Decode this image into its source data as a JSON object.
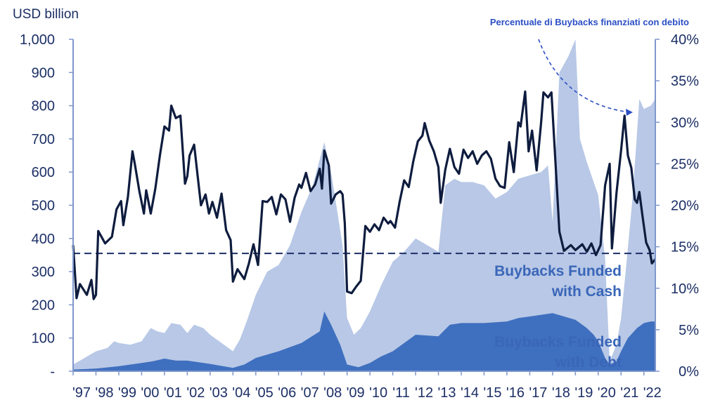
{
  "chart_data": {
    "type": "area",
    "title": "",
    "left_axis_title": "USD billion",
    "xlabel": "",
    "right_axis_label": "Percentuale di Buybacks finanziati con debito",
    "y_left": {
      "range": [
        0,
        1000
      ],
      "ticks": [
        "-",
        "100",
        "200",
        "300",
        "400",
        "500",
        "600",
        "700",
        "800",
        "900",
        "1,000"
      ]
    },
    "y_right": {
      "range": [
        0,
        40
      ],
      "ticks": [
        "0%",
        "5%",
        "10%",
        "15%",
        "20%",
        "25%",
        "30%",
        "35%",
        "40%"
      ]
    },
    "x_range": [
      1997.0,
      2022.5
    ],
    "x_ticks": [
      "'97",
      "'98",
      "'99",
      "'00",
      "'01",
      "'02",
      "'03",
      "'04",
      "'05",
      "'06",
      "'07",
      "'08",
      "'09",
      "'10",
      "'11",
      "'12",
      "'13",
      "'14",
      "'15",
      "'16",
      "'17",
      "'18",
      "'19",
      "'20",
      "'21",
      "'22"
    ],
    "reference_line": {
      "axis": "right",
      "value": 14.2,
      "style": "dashed"
    },
    "annotations": [
      "Buybacks Funded with Cash",
      "Buybacks Funded with Debt"
    ],
    "colors": {
      "cash": "#b8c8e6",
      "debt": "#3f6fbf",
      "line": "#0e1c3e",
      "text": "#1c2f66",
      "label": "#2b4ec4"
    },
    "series": [
      {
        "name": "Buybacks Funded with Cash",
        "axis": "left",
        "kind": "area",
        "points": [
          [
            1997.0,
            20
          ],
          [
            1997.5,
            40
          ],
          [
            1998.0,
            60
          ],
          [
            1998.5,
            70
          ],
          [
            1998.8,
            90
          ],
          [
            1999.0,
            85
          ],
          [
            1999.5,
            80
          ],
          [
            2000.0,
            90
          ],
          [
            2000.4,
            130
          ],
          [
            2000.7,
            120
          ],
          [
            2001.0,
            115
          ],
          [
            2001.3,
            145
          ],
          [
            2001.7,
            140
          ],
          [
            2002.0,
            115
          ],
          [
            2002.3,
            140
          ],
          [
            2002.7,
            130
          ],
          [
            2003.0,
            110
          ],
          [
            2003.3,
            95
          ],
          [
            2003.7,
            75
          ],
          [
            2004.0,
            60
          ],
          [
            2004.3,
            95
          ],
          [
            2004.6,
            150
          ],
          [
            2005.0,
            230
          ],
          [
            2005.5,
            300
          ],
          [
            2006.0,
            320
          ],
          [
            2006.5,
            380
          ],
          [
            2007.0,
            480
          ],
          [
            2007.5,
            560
          ],
          [
            2008.0,
            690
          ],
          [
            2008.3,
            600
          ],
          [
            2008.8,
            380
          ],
          [
            2009.0,
            160
          ],
          [
            2009.3,
            110
          ],
          [
            2009.6,
            130
          ],
          [
            2010.0,
            180
          ],
          [
            2010.5,
            260
          ],
          [
            2011.0,
            330
          ],
          [
            2011.5,
            360
          ],
          [
            2012.0,
            400
          ],
          [
            2012.5,
            380
          ],
          [
            2013.0,
            360
          ],
          [
            2013.3,
            560
          ],
          [
            2013.7,
            580
          ],
          [
            2014.0,
            570
          ],
          [
            2014.5,
            570
          ],
          [
            2015.0,
            560
          ],
          [
            2015.5,
            520
          ],
          [
            2016.0,
            540
          ],
          [
            2016.5,
            580
          ],
          [
            2017.0,
            590
          ],
          [
            2017.5,
            600
          ],
          [
            2017.8,
            620
          ],
          [
            2018.0,
            450
          ],
          [
            2018.3,
            900
          ],
          [
            2018.7,
            950
          ],
          [
            2019.0,
            1000
          ],
          [
            2019.2,
            700
          ],
          [
            2019.5,
            630
          ],
          [
            2020.0,
            530
          ],
          [
            2020.3,
            340
          ],
          [
            2020.5,
            30
          ],
          [
            2020.8,
            80
          ],
          [
            2021.0,
            160
          ],
          [
            2021.2,
            300
          ],
          [
            2021.5,
            520
          ],
          [
            2021.8,
            820
          ],
          [
            2022.0,
            790
          ],
          [
            2022.3,
            800
          ],
          [
            2022.5,
            820
          ]
        ]
      },
      {
        "name": "Buybacks Funded with Debt",
        "axis": "left",
        "kind": "area",
        "points": [
          [
            1997.0,
            5
          ],
          [
            1998.0,
            8
          ],
          [
            1999.0,
            15
          ],
          [
            2000.0,
            25
          ],
          [
            2000.5,
            30
          ],
          [
            2001.0,
            38
          ],
          [
            2001.5,
            32
          ],
          [
            2002.0,
            32
          ],
          [
            2003.0,
            22
          ],
          [
            2004.0,
            10
          ],
          [
            2004.5,
            20
          ],
          [
            2005.0,
            40
          ],
          [
            2006.0,
            60
          ],
          [
            2007.0,
            85
          ],
          [
            2007.8,
            120
          ],
          [
            2008.0,
            180
          ],
          [
            2008.3,
            140
          ],
          [
            2008.7,
            80
          ],
          [
            2009.0,
            20
          ],
          [
            2009.5,
            12
          ],
          [
            2010.0,
            25
          ],
          [
            2010.5,
            45
          ],
          [
            2011.0,
            60
          ],
          [
            2012.0,
            110
          ],
          [
            2013.0,
            105
          ],
          [
            2013.5,
            140
          ],
          [
            2014.0,
            145
          ],
          [
            2015.0,
            145
          ],
          [
            2016.0,
            150
          ],
          [
            2016.5,
            160
          ],
          [
            2017.0,
            165
          ],
          [
            2017.5,
            170
          ],
          [
            2018.0,
            175
          ],
          [
            2018.5,
            165
          ],
          [
            2019.0,
            155
          ],
          [
            2019.5,
            130
          ],
          [
            2019.8,
            110
          ],
          [
            2020.0,
            90
          ],
          [
            2020.3,
            40
          ],
          [
            2020.5,
            20
          ],
          [
            2020.8,
            30
          ],
          [
            2021.0,
            60
          ],
          [
            2021.3,
            100
          ],
          [
            2021.7,
            130
          ],
          [
            2022.0,
            145
          ],
          [
            2022.3,
            150
          ],
          [
            2022.5,
            150
          ]
        ]
      },
      {
        "name": "Percentuale di Buybacks finanziati con debito",
        "axis": "right",
        "kind": "line",
        "points": [
          [
            1997.0,
            15.2
          ],
          [
            1997.15,
            8.8
          ],
          [
            1997.3,
            10.5
          ],
          [
            1997.6,
            9.2
          ],
          [
            1997.8,
            11.0
          ],
          [
            1997.9,
            8.7
          ],
          [
            1998.0,
            9.2
          ],
          [
            1998.1,
            16.9
          ],
          [
            1998.4,
            15.4
          ],
          [
            1998.7,
            16.2
          ],
          [
            1998.9,
            19.5
          ],
          [
            1999.1,
            20.5
          ],
          [
            1999.2,
            17.6
          ],
          [
            1999.4,
            21.0
          ],
          [
            1999.6,
            26.5
          ],
          [
            1999.7,
            25.0
          ],
          [
            1999.9,
            21.7
          ],
          [
            2000.1,
            19.0
          ],
          [
            2000.2,
            21.8
          ],
          [
            2000.4,
            19.0
          ],
          [
            2000.6,
            22.0
          ],
          [
            2000.8,
            26.0
          ],
          [
            2001.0,
            29.5
          ],
          [
            2001.2,
            29.0
          ],
          [
            2001.3,
            32.0
          ],
          [
            2001.5,
            30.5
          ],
          [
            2001.7,
            30.8
          ],
          [
            2001.9,
            22.6
          ],
          [
            2002.0,
            23.5
          ],
          [
            2002.1,
            26.0
          ],
          [
            2002.3,
            27.3
          ],
          [
            2002.6,
            20.0
          ],
          [
            2002.8,
            21.3
          ],
          [
            2002.95,
            19.0
          ],
          [
            2003.1,
            20.4
          ],
          [
            2003.3,
            18.5
          ],
          [
            2003.5,
            21.4
          ],
          [
            2003.7,
            17.0
          ],
          [
            2003.9,
            15.8
          ],
          [
            2004.0,
            10.8
          ],
          [
            2004.2,
            12.3
          ],
          [
            2004.5,
            11.1
          ],
          [
            2004.7,
            13.0
          ],
          [
            2004.9,
            15.3
          ],
          [
            2005.1,
            12.8
          ],
          [
            2005.3,
            20.5
          ],
          [
            2005.5,
            20.4
          ],
          [
            2005.7,
            21.0
          ],
          [
            2005.9,
            18.9
          ],
          [
            2006.1,
            21.3
          ],
          [
            2006.3,
            20.7
          ],
          [
            2006.5,
            18.0
          ],
          [
            2006.7,
            20.9
          ],
          [
            2006.9,
            22.5
          ],
          [
            2007.0,
            22.1
          ],
          [
            2007.2,
            23.9
          ],
          [
            2007.4,
            21.7
          ],
          [
            2007.6,
            22.5
          ],
          [
            2007.8,
            24.4
          ],
          [
            2007.9,
            22.0
          ],
          [
            2008.0,
            26.6
          ],
          [
            2008.2,
            24.8
          ],
          [
            2008.3,
            20.2
          ],
          [
            2008.5,
            21.3
          ],
          [
            2008.7,
            21.7
          ],
          [
            2008.8,
            21.3
          ],
          [
            2008.9,
            17.8
          ],
          [
            2009.0,
            9.6
          ],
          [
            2009.2,
            9.4
          ],
          [
            2009.4,
            10.2
          ],
          [
            2009.6,
            10.9
          ],
          [
            2009.8,
            17.5
          ],
          [
            2010.0,
            16.8
          ],
          [
            2010.2,
            17.7
          ],
          [
            2010.4,
            17.0
          ],
          [
            2010.6,
            18.5
          ],
          [
            2010.8,
            17.8
          ],
          [
            2010.9,
            18.1
          ],
          [
            2011.1,
            17.3
          ],
          [
            2011.3,
            20.4
          ],
          [
            2011.5,
            23.0
          ],
          [
            2011.7,
            22.2
          ],
          [
            2011.9,
            25.3
          ],
          [
            2012.1,
            27.7
          ],
          [
            2012.3,
            28.4
          ],
          [
            2012.4,
            29.9
          ],
          [
            2012.6,
            27.8
          ],
          [
            2012.8,
            26.5
          ],
          [
            2013.0,
            24.6
          ],
          [
            2013.1,
            20.3
          ],
          [
            2013.3,
            24.3
          ],
          [
            2013.5,
            26.8
          ],
          [
            2013.7,
            24.6
          ],
          [
            2013.9,
            23.8
          ],
          [
            2014.1,
            26.7
          ],
          [
            2014.3,
            25.7
          ],
          [
            2014.5,
            26.5
          ],
          [
            2014.7,
            25.0
          ],
          [
            2014.9,
            26.0
          ],
          [
            2015.1,
            26.5
          ],
          [
            2015.3,
            25.6
          ],
          [
            2015.5,
            23.2
          ],
          [
            2015.7,
            22.3
          ],
          [
            2015.9,
            22.1
          ],
          [
            2016.1,
            27.6
          ],
          [
            2016.3,
            24.0
          ],
          [
            2016.5,
            30.0
          ],
          [
            2016.6,
            29.5
          ],
          [
            2016.8,
            33.7
          ],
          [
            2016.95,
            26.5
          ],
          [
            2017.1,
            29.0
          ],
          [
            2017.3,
            24.2
          ],
          [
            2017.5,
            30.0
          ],
          [
            2017.6,
            33.6
          ],
          [
            2017.8,
            33.0
          ],
          [
            2017.95,
            33.6
          ],
          [
            2018.1,
            26.5
          ],
          [
            2018.3,
            16.8
          ],
          [
            2018.5,
            14.5
          ],
          [
            2018.8,
            15.2
          ],
          [
            2019.0,
            14.6
          ],
          [
            2019.3,
            15.3
          ],
          [
            2019.5,
            14.4
          ],
          [
            2019.7,
            15.4
          ],
          [
            2019.9,
            14.0
          ],
          [
            2020.1,
            15.2
          ],
          [
            2020.3,
            22.4
          ],
          [
            2020.5,
            25.0
          ],
          [
            2020.6,
            14.8
          ],
          [
            2020.8,
            21.5
          ],
          [
            2021.0,
            26.6
          ],
          [
            2021.15,
            30.8
          ],
          [
            2021.3,
            26.0
          ],
          [
            2021.45,
            24.5
          ],
          [
            2021.6,
            20.7
          ],
          [
            2021.7,
            20.3
          ],
          [
            2021.8,
            21.6
          ],
          [
            2021.95,
            18.5
          ],
          [
            2022.1,
            15.5
          ],
          [
            2022.25,
            14.6
          ],
          [
            2022.35,
            13.0
          ],
          [
            2022.5,
            13.5
          ]
        ]
      }
    ]
  }
}
